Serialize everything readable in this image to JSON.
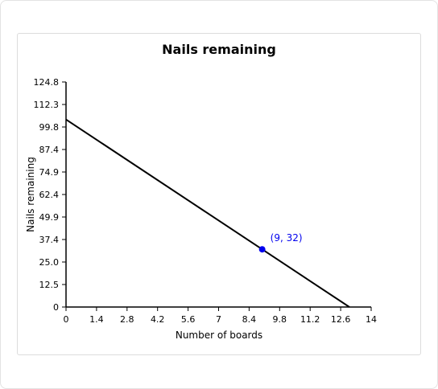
{
  "chart_data": {
    "type": "line",
    "title": "Nails remaining",
    "xlabel": "Number of boards",
    "ylabel": "Nails remaining",
    "xlim": [
      0,
      14
    ],
    "ylim": [
      0,
      124.8
    ],
    "x_ticks": [
      "0",
      "1.4",
      "2.8",
      "4.2",
      "5.6",
      "7",
      "8.4",
      "9.8",
      "11.2",
      "12.6",
      "14"
    ],
    "y_ticks": [
      "0",
      "12.5",
      "25.0",
      "37.4",
      "49.9",
      "62.4",
      "74.9",
      "87.4",
      "99.8",
      "112.3",
      "124.8"
    ],
    "series": [
      {
        "x": [
          0,
          13
        ],
        "y": [
          104,
          0
        ],
        "color": "#000000"
      }
    ],
    "highlight_point": {
      "x": 9,
      "y": 32,
      "label": "(9, 32)",
      "color": "#0000ee"
    },
    "grid": false,
    "legend": "none"
  }
}
